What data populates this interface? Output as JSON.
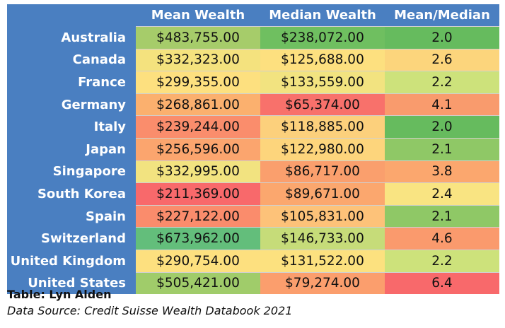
{
  "chart_data": {
    "type": "table",
    "columns": [
      "Mean Wealth",
      "Median Wealth",
      "Mean/Median"
    ],
    "rows": [
      {
        "label": "Australia",
        "cells": [
          "$483,755.00",
          "$238,072.00",
          "2.0"
        ],
        "values": [
          483755,
          238072,
          2.0
        ]
      },
      {
        "label": "Canada",
        "cells": [
          "$332,323.00",
          "$125,688.00",
          "2.6"
        ],
        "values": [
          332323,
          125688,
          2.6
        ]
      },
      {
        "label": "France",
        "cells": [
          "$299,355.00",
          "$133,559.00",
          "2.2"
        ],
        "values": [
          299355,
          133559,
          2.2
        ]
      },
      {
        "label": "Germany",
        "cells": [
          "$268,861.00",
          "$65,374.00",
          "4.1"
        ],
        "values": [
          268861,
          65374,
          4.1
        ]
      },
      {
        "label": "Italy",
        "cells": [
          "$239,244.00",
          "$118,885.00",
          "2.0"
        ],
        "values": [
          239244,
          118885,
          2.0
        ]
      },
      {
        "label": "Japan",
        "cells": [
          "$256,596.00",
          "$122,980.00",
          "2.1"
        ],
        "values": [
          256596,
          122980,
          2.1
        ]
      },
      {
        "label": "Singapore",
        "cells": [
          "$332,995.00",
          "$86,717.00",
          "3.8"
        ],
        "values": [
          332995,
          86717,
          3.8
        ]
      },
      {
        "label": "South Korea",
        "cells": [
          "$211,369.00",
          "$89,671.00",
          "2.4"
        ],
        "values": [
          211369,
          89671,
          2.4
        ]
      },
      {
        "label": "Spain",
        "cells": [
          "$227,122.00",
          "$105,831.00",
          "2.1"
        ],
        "values": [
          227122,
          105831,
          2.1
        ]
      },
      {
        "label": "Switzerland",
        "cells": [
          "$673,962.00",
          "$146,733.00",
          "4.6"
        ],
        "values": [
          673962,
          146733,
          4.6
        ]
      },
      {
        "label": "United Kingdom",
        "cells": [
          "$290,754.00",
          "$131,522.00",
          "2.2"
        ],
        "values": [
          290754,
          131522,
          2.2
        ]
      },
      {
        "label": "United States",
        "cells": [
          "$505,421.00",
          "$79,274.00",
          "6.4"
        ],
        "values": [
          505421,
          79274,
          6.4
        ]
      }
    ],
    "cell_colors": [
      [
        "#a6cc6a",
        "#6fbf60",
        "#66bb5e"
      ],
      [
        "#f4e27e",
        "#fde07f",
        "#fcd57c"
      ],
      [
        "#fde07f",
        "#f2e380",
        "#cde27b"
      ],
      [
        "#fbb06e",
        "#f8716b",
        "#f99b6d"
      ],
      [
        "#fa8d6c",
        "#fcd07c",
        "#66bb5e"
      ],
      [
        "#fba56e",
        "#fdd57c",
        "#8fc866"
      ],
      [
        "#f2e380",
        "#fa9f6d",
        "#fba76e"
      ],
      [
        "#f8696b",
        "#fba76e",
        "#f9e482"
      ],
      [
        "#fa8c6c",
        "#fdc279",
        "#8fc866"
      ],
      [
        "#63be7b",
        "#c6dc79",
        "#fa9a6d"
      ],
      [
        "#fde07f",
        "#fce17f",
        "#cde27b"
      ],
      [
        "#a0cc6a",
        "#fb9e6d",
        "#f8696b"
      ]
    ],
    "credit": "Table: Lyn Alden",
    "source": "Data Source: Credit Suisse Wealth Databook 2021"
  },
  "colors": {
    "header_blue": "#4a7fc1",
    "header_text": "#ffffff",
    "cell_text": "#111111"
  }
}
